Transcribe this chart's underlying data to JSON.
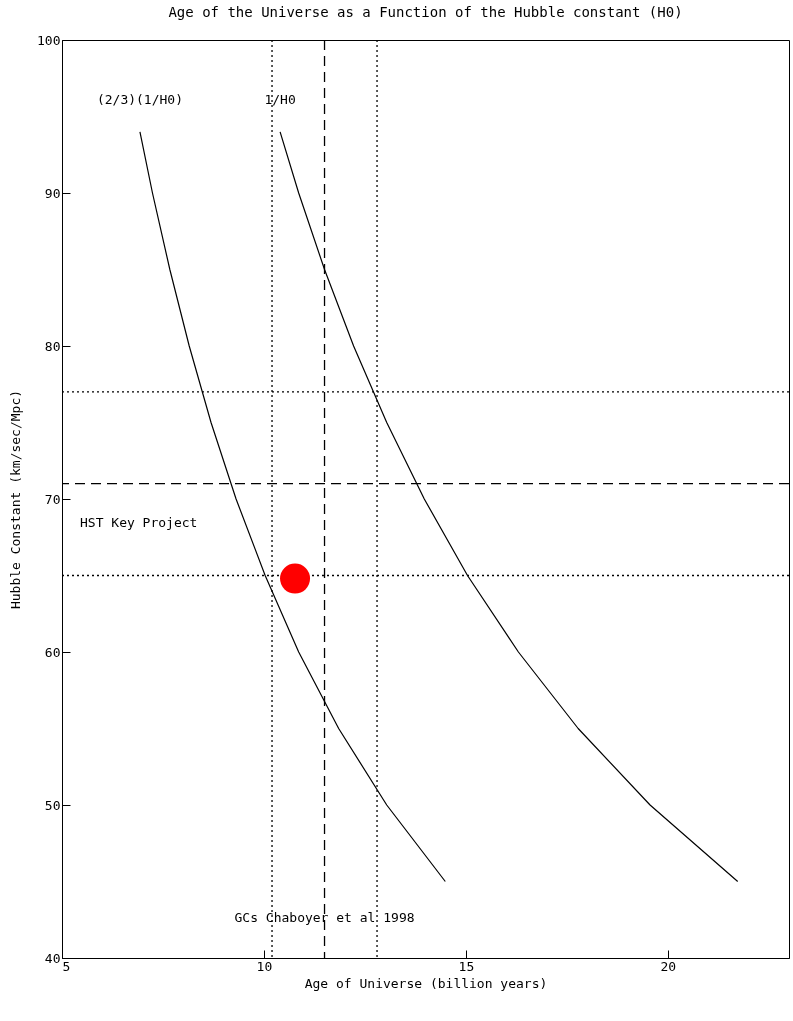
{
  "chart_data": {
    "type": "line",
    "title": "Age of the Universe as a Function of the Hubble constant (H0)",
    "xlabel": "Age of Universe (billion years)",
    "ylabel": "Hubble Constant (km/sec/Mpc)",
    "xlim": [
      5,
      23
    ],
    "xticks": [
      5,
      10,
      15,
      20
    ],
    "ylim": [
      40,
      100
    ],
    "yticks": [
      40,
      50,
      60,
      70,
      80,
      90,
      100
    ],
    "grid": false,
    "series": [
      {
        "name": "(2/3)(1/H0)",
        "color": "#000000",
        "line_style": "solid",
        "x": [
          6.93,
          7.24,
          7.67,
          8.15,
          8.69,
          9.31,
          10.03,
          10.86,
          11.85,
          13.04,
          14.49
        ],
        "values": [
          94,
          90,
          85,
          80,
          75,
          70,
          65,
          60,
          55,
          50,
          45
        ]
      },
      {
        "name": "1/H0",
        "color": "#000000",
        "line_style": "solid",
        "x": [
          10.4,
          10.86,
          11.5,
          12.22,
          13.04,
          13.97,
          15.04,
          16.3,
          17.78,
          19.56,
          21.73
        ],
        "values": [
          94,
          90,
          85,
          80,
          75,
          70,
          65,
          60,
          55,
          50,
          45
        ]
      },
      {
        "type": "scatter",
        "color": "#ff0000",
        "marker": "circle",
        "x": [
          10.77
        ],
        "values": [
          64.8
        ]
      }
    ],
    "ref_lines": [
      {
        "axis": "y",
        "value": 77,
        "line_style": "dotted",
        "color": "#000000"
      },
      {
        "axis": "y",
        "value": 71,
        "line_style": "dashed",
        "color": "#000000",
        "label": "HST Key Project"
      },
      {
        "axis": "y",
        "value": 65,
        "line_style": "dotted",
        "color": "#000000"
      },
      {
        "axis": "x",
        "value": 10.2,
        "line_style": "dotted",
        "color": "#000000"
      },
      {
        "axis": "x",
        "value": 11.5,
        "line_style": "dashed",
        "color": "#000000",
        "label": "GCs Chaboyer et al 1998"
      },
      {
        "axis": "x",
        "value": 12.8,
        "line_style": "dotted",
        "color": "#000000"
      }
    ]
  }
}
